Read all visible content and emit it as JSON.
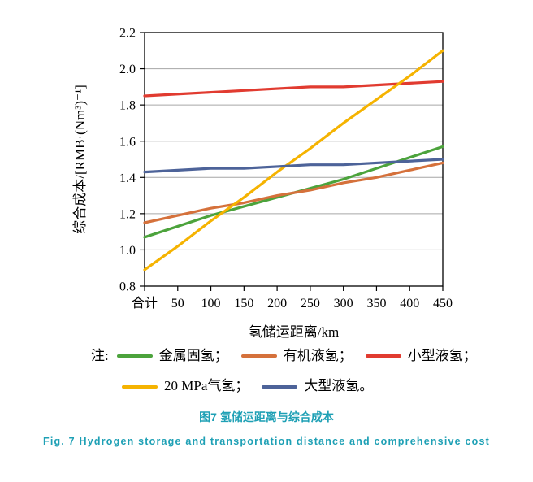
{
  "chart_data": {
    "type": "line",
    "x_categories": [
      "合计",
      "50",
      "100",
      "150",
      "200",
      "250",
      "300",
      "350",
      "400",
      "450"
    ],
    "xlabel": "氢储运距离/km",
    "ylabel": "综合成本/[RMB·(Nm³)⁻¹]",
    "ylim": [
      0.8,
      2.2
    ],
    "yticks": [
      "0.8",
      "1.0",
      "1.2",
      "1.4",
      "1.6",
      "1.8",
      "2.0",
      "2.2"
    ],
    "grid": true,
    "legend_position": "bottom",
    "series": [
      {
        "name": "金属固氢",
        "color": "#4CA33C",
        "values": [
          1.07,
          1.13,
          1.19,
          1.24,
          1.29,
          1.34,
          1.39,
          1.45,
          1.51,
          1.57
        ]
      },
      {
        "name": "有机液氢",
        "color": "#D5713B",
        "values": [
          1.15,
          1.19,
          1.23,
          1.26,
          1.3,
          1.33,
          1.37,
          1.4,
          1.44,
          1.48
        ]
      },
      {
        "name": "小型液氢",
        "color": "#E13B30",
        "values": [
          1.85,
          1.86,
          1.87,
          1.88,
          1.89,
          1.9,
          1.9,
          1.91,
          1.92,
          1.93
        ]
      },
      {
        "name": "20 MPa气氢",
        "color": "#F5B301",
        "values": [
          0.89,
          1.02,
          1.16,
          1.29,
          1.43,
          1.56,
          1.7,
          1.83,
          1.96,
          2.1
        ]
      },
      {
        "name": "大型液氢",
        "color": "#4D6399",
        "values": [
          1.43,
          1.44,
          1.45,
          1.45,
          1.46,
          1.47,
          1.47,
          1.48,
          1.49,
          1.5
        ]
      }
    ]
  },
  "legend": {
    "note": "注:",
    "rows": [
      [
        {
          "series": 0,
          "label": "金属固氢；"
        },
        {
          "series": 1,
          "label": "有机液氢；"
        },
        {
          "series": 2,
          "label": "小型液氢；"
        }
      ],
      [
        {
          "series": 3,
          "label": "20 MPa气氢；"
        },
        {
          "series": 4,
          "label": "大型液氢。"
        }
      ]
    ]
  },
  "captions": {
    "chinese": "图7 氢储运距离与综合成本",
    "english": "Fig. 7 Hydrogen storage and transportation distance and comprehensive cost"
  },
  "style": {
    "caption_color": "#1EA0B5",
    "grid_color": "#A6A6A6",
    "axis_color": "#000000",
    "line_width": 3.2
  }
}
